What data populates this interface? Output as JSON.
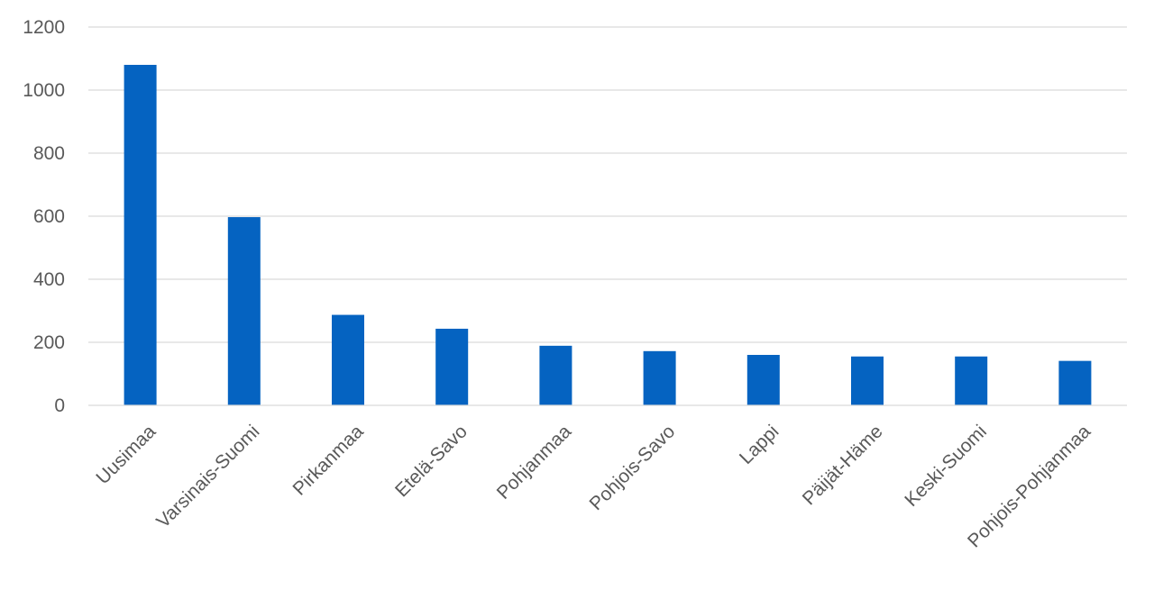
{
  "chart_data": {
    "type": "bar",
    "title": "",
    "xlabel": "",
    "ylabel": "",
    "categories": [
      "Uusimaa",
      "Varsinais-Suomi",
      "Pirkanmaa",
      "Etelä-Savo",
      "Pohjanmaa",
      "Pohjois-Savo",
      "Lappi",
      "Päijät-Häme",
      "Keski-Suomi",
      "Pohjois-Pohjanmaa"
    ],
    "values": [
      1080,
      597,
      287,
      243,
      189,
      172,
      160,
      155,
      155,
      141
    ],
    "ylim": [
      0,
      1200
    ],
    "yticks": [
      0,
      200,
      400,
      600,
      800,
      1000,
      1200
    ],
    "grid": true,
    "legend": "none",
    "bar_color": "#0563c1"
  }
}
